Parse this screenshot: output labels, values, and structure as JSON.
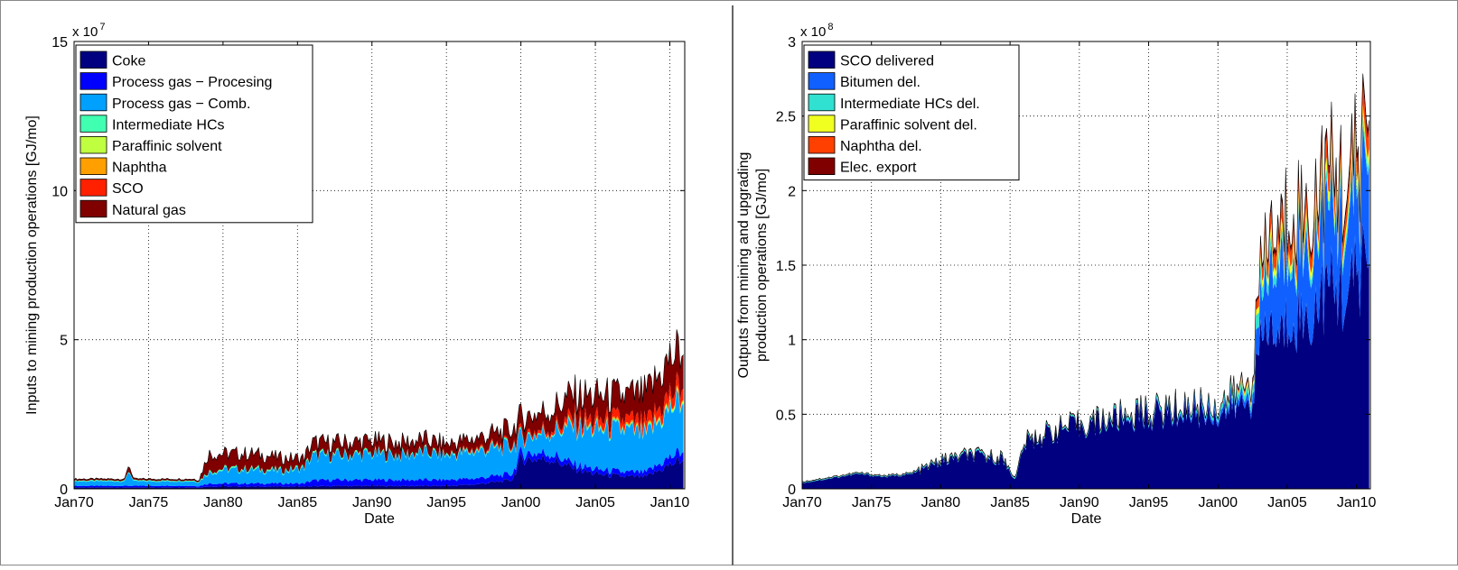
{
  "chart_data": [
    {
      "type": "area",
      "xlabel": "Date",
      "ylabel": "Inputs to mining production operations [GJ/mo]",
      "exponent_label": "x 10",
      "exponent_power": "7",
      "x_range": [
        "1970-01",
        "2011-01"
      ],
      "ylim": [
        0,
        15
      ],
      "grid": true,
      "legend_position": "top-left",
      "x_ticks": [
        {
          "value": "1970-01",
          "label": "Jan70"
        },
        {
          "value": "1975-01",
          "label": "Jan75"
        },
        {
          "value": "1980-01",
          "label": "Jan80"
        },
        {
          "value": "1985-01",
          "label": "Jan85"
        },
        {
          "value": "1990-01",
          "label": "Jan90"
        },
        {
          "value": "1995-01",
          "label": "Jan95"
        },
        {
          "value": "2000-01",
          "label": "Jan00"
        },
        {
          "value": "2005-01",
          "label": "Jan05"
        },
        {
          "value": "2010-01",
          "label": "Jan10"
        }
      ],
      "y_ticks": [
        {
          "value": 0,
          "label": "0"
        },
        {
          "value": 5,
          "label": "5"
        },
        {
          "value": 10,
          "label": "10"
        },
        {
          "value": 15,
          "label": "15"
        }
      ],
      "x": [
        "1970-01",
        "1973-06",
        "1973-09",
        "1974-01",
        "1978-06",
        "1979-01",
        "1980-01",
        "1982-01",
        "1984-01",
        "1985-06",
        "1986-01",
        "1988-01",
        "1990-01",
        "1992-01",
        "1993-06",
        "1995-01",
        "1997-01",
        "1999-06",
        "2000-01",
        "2002-01",
        "2003-06",
        "2005-01",
        "2007-01",
        "2008-06",
        "2010-01",
        "2010-12"
      ],
      "series": [
        {
          "name": "Coke",
          "color": "#000080",
          "values": [
            0.05,
            0.05,
            0.05,
            0.05,
            0.05,
            0.08,
            0.08,
            0.08,
            0.08,
            0.08,
            0.08,
            0.1,
            0.1,
            0.1,
            0.1,
            0.1,
            0.15,
            0.3,
            1.0,
            1.0,
            0.7,
            0.5,
            0.4,
            0.4,
            0.8,
            1.0
          ]
        },
        {
          "name": "Process gas − Procesing",
          "color": "#0000ff",
          "values": [
            0.05,
            0.05,
            0.05,
            0.05,
            0.05,
            0.1,
            0.1,
            0.1,
            0.1,
            0.1,
            0.2,
            0.2,
            0.2,
            0.2,
            0.2,
            0.2,
            0.2,
            0.2,
            0.2,
            0.2,
            0.15,
            0.15,
            0.15,
            0.15,
            0.25,
            0.3
          ]
        },
        {
          "name": "Process gas − Comb.",
          "color": "#00a0ff",
          "values": [
            0.15,
            0.15,
            0.5,
            0.15,
            0.15,
            0.35,
            0.45,
            0.45,
            0.4,
            0.5,
            0.8,
            0.8,
            0.85,
            0.8,
            0.9,
            0.8,
            0.9,
            0.9,
            0.5,
            0.7,
            1.2,
            1.3,
            1.4,
            1.2,
            1.6,
            1.7
          ]
        },
        {
          "name": "Intermediate HCs",
          "color": "#40ffb0",
          "values": [
            0.03,
            0.03,
            0.03,
            0.03,
            0.03,
            0.05,
            0.05,
            0.05,
            0.05,
            0.05,
            0.05,
            0.05,
            0.05,
            0.05,
            0.05,
            0.05,
            0.05,
            0.05,
            0.05,
            0.05,
            0.05,
            0.05,
            0.05,
            0.05,
            0.05,
            0.05
          ]
        },
        {
          "name": "Paraffinic solvent",
          "color": "#c0ff40",
          "values": [
            0,
            0,
            0,
            0,
            0,
            0,
            0,
            0,
            0,
            0,
            0,
            0,
            0,
            0,
            0,
            0,
            0,
            0,
            0,
            0,
            0,
            0,
            0,
            0,
            0.05,
            0.05
          ]
        },
        {
          "name": "Naphtha",
          "color": "#ffa000",
          "values": [
            0,
            0,
            0,
            0,
            0,
            0,
            0,
            0,
            0,
            0,
            0,
            0,
            0,
            0,
            0,
            0,
            0,
            0,
            0,
            0,
            0.05,
            0.05,
            0.05,
            0.05,
            0.05,
            0.05
          ]
        },
        {
          "name": "SCO",
          "color": "#ff2000",
          "values": [
            0,
            0,
            0,
            0,
            0,
            0,
            0,
            0,
            0,
            0,
            0,
            0,
            0,
            0,
            0,
            0,
            0.05,
            0.05,
            0.1,
            0.1,
            0.2,
            0.25,
            0.25,
            0.3,
            0.35,
            0.4
          ]
        },
        {
          "name": "Natural gas",
          "color": "#800000",
          "values": [
            0.05,
            0.05,
            0.2,
            0.05,
            0.05,
            0.6,
            0.5,
            0.5,
            0.4,
            0.3,
            0.4,
            0.4,
            0.4,
            0.4,
            0.4,
            0.35,
            0.35,
            0.5,
            0.55,
            0.6,
            0.8,
            0.8,
            0.8,
            1.0,
            1.2,
            1.2
          ]
        }
      ]
    },
    {
      "type": "area",
      "xlabel": "Date",
      "ylabel": "Outputs from mining and upgrading",
      "ylabel2": "production operations [GJ/mo]",
      "exponent_label": "x 10",
      "exponent_power": "8",
      "x_range": [
        "1970-01",
        "2011-01"
      ],
      "ylim": [
        0,
        3
      ],
      "grid": true,
      "legend_position": "top-left",
      "x_ticks": [
        {
          "value": "1970-01",
          "label": "Jan70"
        },
        {
          "value": "1975-01",
          "label": "Jan75"
        },
        {
          "value": "1980-01",
          "label": "Jan80"
        },
        {
          "value": "1985-01",
          "label": "Jan85"
        },
        {
          "value": "1990-01",
          "label": "Jan90"
        },
        {
          "value": "1995-01",
          "label": "Jan95"
        },
        {
          "value": "2000-01",
          "label": "Jan00"
        },
        {
          "value": "2005-01",
          "label": "Jan05"
        },
        {
          "value": "2010-01",
          "label": "Jan10"
        }
      ],
      "y_ticks": [
        {
          "value": 0,
          "label": "0"
        },
        {
          "value": 0.5,
          "label": "0.5"
        },
        {
          "value": 1,
          "label": "1"
        },
        {
          "value": 1.5,
          "label": "1.5"
        },
        {
          "value": 2,
          "label": "2"
        },
        {
          "value": 2.5,
          "label": "2.5"
        },
        {
          "value": 3,
          "label": "3"
        }
      ],
      "x": [
        "1970-01",
        "1972-01",
        "1974-01",
        "1976-01",
        "1978-01",
        "1980-01",
        "1982-01",
        "1984-06",
        "1985-06",
        "1986-01",
        "1988-01",
        "1990-01",
        "1992-01",
        "1994-01",
        "1996-01",
        "1998-01",
        "2000-01",
        "2001-06",
        "2002-06",
        "2003-01",
        "2003-06",
        "2004-06",
        "2005-06",
        "2006-06",
        "2007-06",
        "2008-06",
        "2009-06",
        "2010-06",
        "2010-12"
      ],
      "series": [
        {
          "name": "SCO delivered",
          "color": "#000080",
          "values": [
            0.04,
            0.07,
            0.1,
            0.08,
            0.1,
            0.18,
            0.22,
            0.2,
            0.06,
            0.3,
            0.38,
            0.42,
            0.45,
            0.48,
            0.5,
            0.52,
            0.5,
            0.55,
            0.6,
            0.9,
            1.1,
            1.0,
            1.2,
            1.1,
            1.3,
            1.35,
            1.3,
            1.5,
            1.6
          ]
        },
        {
          "name": "Bitumen del.",
          "color": "#1060ff",
          "values": [
            0,
            0,
            0,
            0,
            0,
            0,
            0,
            0,
            0,
            0,
            0,
            0,
            0,
            0.01,
            0.01,
            0.02,
            0.03,
            0.04,
            0.05,
            0.2,
            0.35,
            0.45,
            0.5,
            0.45,
            0.5,
            0.5,
            0.45,
            0.55,
            0.7
          ]
        },
        {
          "name": "Intermediate HCs del.",
          "color": "#30e0d0",
          "values": [
            0.005,
            0.005,
            0.005,
            0.005,
            0.005,
            0.01,
            0.01,
            0.01,
            0.01,
            0.01,
            0.01,
            0.01,
            0.02,
            0.02,
            0.02,
            0.02,
            0.03,
            0.04,
            0.05,
            0.1,
            0.08,
            0.06,
            0.06,
            0.06,
            0.06,
            0.06,
            0.06,
            0.06,
            0.06
          ]
        },
        {
          "name": "Paraffinic solvent del.",
          "color": "#f0ff20",
          "values": [
            0,
            0,
            0,
            0,
            0,
            0,
            0,
            0,
            0,
            0,
            0,
            0,
            0,
            0,
            0,
            0,
            0,
            0.01,
            0.02,
            0.04,
            0.05,
            0.05,
            0.06,
            0.06,
            0.07,
            0.06,
            0.06,
            0.06,
            0.06
          ]
        },
        {
          "name": "Naphtha del.",
          "color": "#ff4000",
          "values": [
            0,
            0,
            0,
            0,
            0,
            0,
            0,
            0,
            0,
            0,
            0,
            0,
            0,
            0,
            0,
            0,
            0,
            0.01,
            0.02,
            0.06,
            0.1,
            0.1,
            0.12,
            0.1,
            0.12,
            0.12,
            0.1,
            0.12,
            0.14
          ]
        },
        {
          "name": "Elec. export",
          "color": "#800000",
          "values": [
            0.003,
            0.003,
            0.003,
            0.003,
            0.003,
            0.005,
            0.005,
            0.005,
            0.005,
            0.005,
            0.005,
            0.005,
            0.005,
            0.005,
            0.005,
            0.005,
            0.005,
            0.01,
            0.01,
            0.02,
            0.03,
            0.04,
            0.04,
            0.04,
            0.05,
            0.05,
            0.05,
            0.05,
            0.06
          ]
        }
      ]
    }
  ]
}
